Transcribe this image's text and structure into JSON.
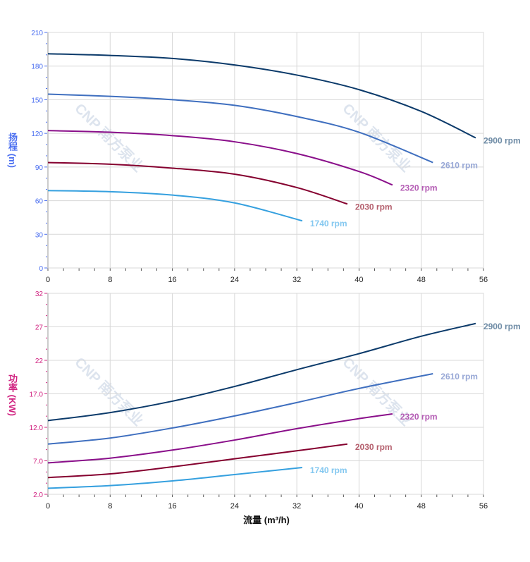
{
  "watermark": "CNP 南方泵业",
  "chart_data": [
    {
      "type": "line",
      "ylabel": "扬程 (m)",
      "xlim": [
        0,
        56
      ],
      "ylim": [
        0,
        210
      ],
      "xticks": [
        0,
        8,
        16,
        24,
        32,
        40,
        48,
        56
      ],
      "yticks": [
        "0",
        "30",
        "60",
        "90",
        "120",
        "150",
        "180",
        "210"
      ],
      "ytick_values": [
        0,
        30,
        60,
        90,
        120,
        150,
        180,
        210
      ],
      "grid": true,
      "tick_color": "#4a6ef0",
      "series": [
        {
          "name": "2900 rpm",
          "color": "#0b3a6a",
          "label_color": "#6f8ca6",
          "x": [
            0,
            8,
            16,
            24,
            32,
            40,
            48,
            55
          ],
          "y": [
            191,
            189.5,
            186.8,
            181,
            172,
            159,
            139.6,
            116
          ]
        },
        {
          "name": "2610 rpm",
          "color": "#3f6fbf",
          "label_color": "#98a8d6",
          "x": [
            0,
            8,
            16,
            24,
            32,
            40,
            49.5
          ],
          "y": [
            155,
            153,
            150,
            145,
            135,
            121,
            94
          ]
        },
        {
          "name": "2320 rpm",
          "color": "#8a0f8a",
          "label_color": "#b45cb4",
          "x": [
            0,
            8,
            16,
            24,
            32,
            40,
            44.3
          ],
          "y": [
            122.5,
            121,
            118,
            112.5,
            102,
            86,
            74
          ]
        },
        {
          "name": "2030 rpm",
          "color": "#85002f",
          "label_color": "#b5606e",
          "x": [
            0,
            8,
            16,
            24,
            32,
            38.5
          ],
          "y": [
            94,
            92.5,
            89,
            83.6,
            71.7,
            57
          ]
        },
        {
          "name": "1740 rpm",
          "color": "#35a0df",
          "label_color": "#84c8f0",
          "x": [
            0,
            8,
            16,
            24,
            32.7
          ],
          "y": [
            69,
            68,
            65,
            58,
            42
          ]
        }
      ]
    },
    {
      "type": "line",
      "ylabel": "功率 (KW)",
      "xlabel": "流量 (m³/h)",
      "xlim": [
        0,
        56
      ],
      "ylim": [
        2,
        32
      ],
      "xticks": [
        0,
        8,
        16,
        24,
        32,
        40,
        48,
        56
      ],
      "yticks": [
        "2.0",
        "7.0",
        "12.0",
        "17.0",
        "22",
        "27",
        "32"
      ],
      "ytick_values": [
        2,
        7,
        12,
        17,
        22,
        27,
        32
      ],
      "grid": true,
      "tick_color": "#d0207f",
      "series": [
        {
          "name": "2900 rpm",
          "color": "#0b3a6a",
          "label_color": "#6f8ca6",
          "x": [
            0,
            8,
            16,
            24,
            32,
            40,
            48,
            55
          ],
          "y": [
            13,
            14.2,
            15.9,
            18.1,
            20.6,
            23,
            25.6,
            27.5
          ]
        },
        {
          "name": "2610 rpm",
          "color": "#3f6fbf",
          "label_color": "#98a8d6",
          "x": [
            0,
            8,
            16,
            24,
            32,
            40,
            49.5
          ],
          "y": [
            9.5,
            10.4,
            11.9,
            13.7,
            15.7,
            17.8,
            20
          ]
        },
        {
          "name": "2320 rpm",
          "color": "#8a0f8a",
          "label_color": "#b45cb4",
          "x": [
            0,
            8,
            16,
            24,
            32,
            40,
            44.3
          ],
          "y": [
            6.7,
            7.4,
            8.6,
            10.1,
            11.8,
            13.3,
            14
          ]
        },
        {
          "name": "2030 rpm",
          "color": "#85002f",
          "label_color": "#b5606e",
          "x": [
            0,
            8,
            16,
            24,
            32,
            38.5
          ],
          "y": [
            4.5,
            5.05,
            6.1,
            7.3,
            8.5,
            9.5
          ]
        },
        {
          "name": "1740 rpm",
          "color": "#35a0df",
          "label_color": "#84c8f0",
          "x": [
            0,
            8,
            16,
            24,
            32.7
          ],
          "y": [
            2.9,
            3.3,
            4,
            4.95,
            6
          ]
        }
      ]
    }
  ]
}
